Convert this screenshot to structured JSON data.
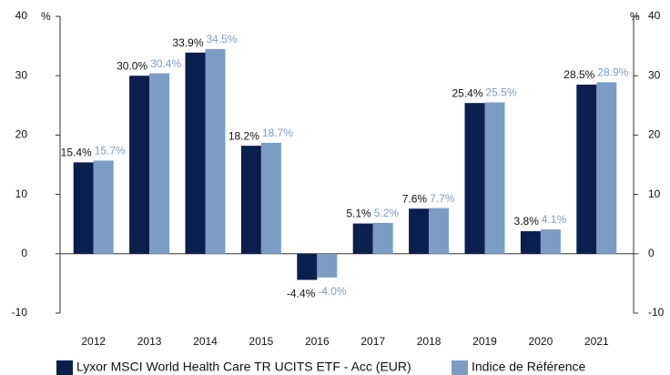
{
  "chart_data": {
    "type": "bar",
    "categories": [
      "2012",
      "2013",
      "2014",
      "2015",
      "2016",
      "2017",
      "2018",
      "2019",
      "2020",
      "2021"
    ],
    "series": [
      {
        "name": "Lyxor MSCI World Health Care TR UCITS ETF - Acc (EUR)",
        "color": "#0b1f4e",
        "values": [
          15.4,
          30.0,
          33.9,
          18.2,
          -4.4,
          5.1,
          7.6,
          25.4,
          3.8,
          28.5
        ],
        "value_labels": [
          "15.4%",
          "30.0%",
          "33.9%",
          "18.2%",
          "-4.4%",
          "5.1%",
          "7.6%",
          "25.4%",
          "3.8%",
          "28.5%"
        ]
      },
      {
        "name": "Indice de Référence",
        "color": "#7b9cc4",
        "values": [
          15.7,
          30.4,
          34.5,
          18.7,
          -4.0,
          5.2,
          7.7,
          25.5,
          4.1,
          28.9
        ],
        "value_labels": [
          "15.7%",
          "30.4%",
          "34.5%",
          "18.7%",
          "-4.0%",
          "5.2%",
          "7.7%",
          "25.5%",
          "4.1%",
          "28.9%"
        ]
      }
    ],
    "ylabel": "%",
    "y2label": "%",
    "ylim": [
      -10,
      40
    ],
    "yticks": [
      -10,
      0,
      10,
      20,
      30,
      40
    ],
    "y2lim": [
      -10,
      40
    ],
    "y2ticks": [
      -10,
      0,
      10,
      20,
      30,
      40
    ],
    "legend": "bottom"
  }
}
